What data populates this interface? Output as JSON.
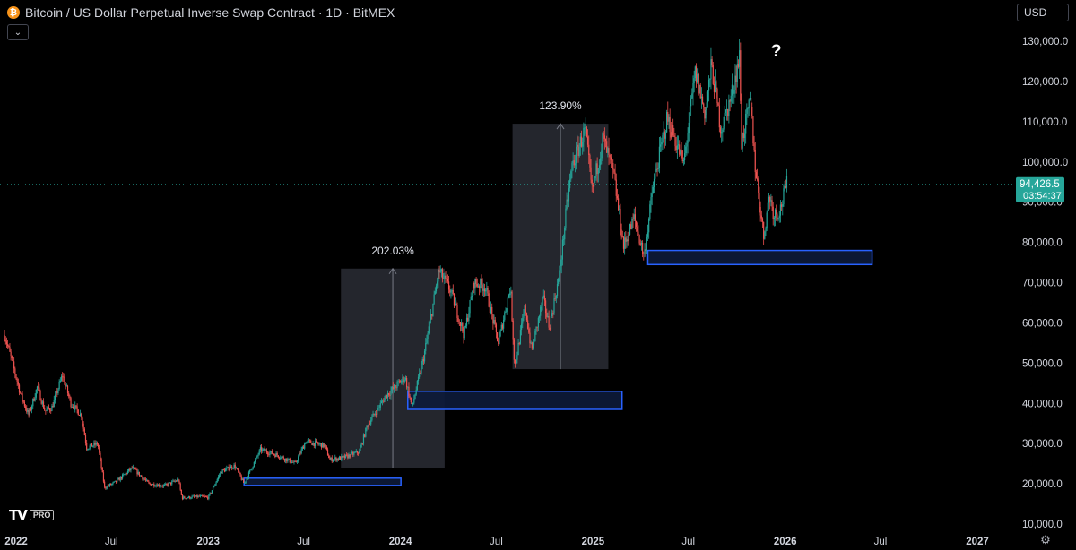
{
  "header": {
    "symbol_icon": "bitcoin-icon",
    "title": "Bitcoin / US Dollar Perpetual Inverse Swap Contract · 1D · BitMEX"
  },
  "currency_button": "USD",
  "collapse_icon": "chevron-down-icon",
  "logo": {
    "mark": "TV",
    "badge": "PRO"
  },
  "settings_icon": "gear-icon",
  "colors": {
    "background": "#000000",
    "up": "#26a69a",
    "down": "#ef5350",
    "zone_border": "#2962ff",
    "zone_fill": "#0d1b3a",
    "measure_fill": "#2a2d35",
    "price_label": "#26a69a"
  },
  "chart_data": {
    "type": "candlestick",
    "title": "Bitcoin / US Dollar Perpetual Inverse Swap Contract · 1D · BitMEX",
    "x_ticks": [
      "2022",
      "Jul",
      "2023",
      "Jul",
      "2024",
      "Jul",
      "2025",
      "Jul",
      "2026",
      "Jul",
      "2027"
    ],
    "x_tick_dates": [
      "2022-01-01",
      "2022-07-01",
      "2023-01-01",
      "2023-07-01",
      "2024-01-01",
      "2024-07-01",
      "2025-01-01",
      "2025-07-01",
      "2026-01-01",
      "2026-07-01",
      "2027-01-01"
    ],
    "y_ticks": [
      "130,000.0",
      "120,000.0",
      "110,000.0",
      "100,000.0",
      "90,000.0",
      "80,000.0",
      "70,000.0",
      "60,000.0",
      "50,000.0",
      "40,000.0",
      "30,000.0",
      "20,000.0",
      "10,000.0"
    ],
    "y_tick_values": [
      130000,
      120000,
      110000,
      100000,
      90000,
      80000,
      70000,
      60000,
      50000,
      40000,
      30000,
      20000,
      10000
    ],
    "ylim": [
      10000,
      130000
    ],
    "xlim": [
      "2022-01-01",
      "2027-01-01"
    ],
    "price_path": [
      [
        "2021-12-10",
        57000
      ],
      [
        "2021-12-25",
        50000
      ],
      [
        "2022-01-10",
        42000
      ],
      [
        "2022-01-25",
        37000
      ],
      [
        "2022-02-10",
        44000
      ],
      [
        "2022-02-25",
        38000
      ],
      [
        "2022-03-10",
        39000
      ],
      [
        "2022-03-30",
        47000
      ],
      [
        "2022-04-15",
        40000
      ],
      [
        "2022-05-05",
        37000
      ],
      [
        "2022-05-15",
        29000
      ],
      [
        "2022-06-05",
        30000
      ],
      [
        "2022-06-18",
        19000
      ],
      [
        "2022-07-10",
        20500
      ],
      [
        "2022-08-10",
        24000
      ],
      [
        "2022-09-10",
        20000
      ],
      [
        "2022-10-10",
        19500
      ],
      [
        "2022-11-05",
        21000
      ],
      [
        "2022-11-12",
        16500
      ],
      [
        "2022-12-15",
        16800
      ],
      [
        "2023-01-01",
        16600
      ],
      [
        "2023-01-25",
        23000
      ],
      [
        "2023-02-20",
        24500
      ],
      [
        "2023-03-10",
        20000
      ],
      [
        "2023-04-10",
        28500
      ],
      [
        "2023-05-15",
        27000
      ],
      [
        "2023-06-15",
        25000
      ],
      [
        "2023-07-05",
        30500
      ],
      [
        "2023-08-10",
        29500
      ],
      [
        "2023-08-20",
        26000
      ],
      [
        "2023-09-15",
        26500
      ],
      [
        "2023-10-15",
        28000
      ],
      [
        "2023-10-30",
        34500
      ],
      [
        "2023-12-05",
        42000
      ],
      [
        "2024-01-10",
        46500
      ],
      [
        "2024-01-23",
        39000
      ],
      [
        "2024-02-15",
        52000
      ],
      [
        "2024-03-05",
        66000
      ],
      [
        "2024-03-14",
        73000
      ],
      [
        "2024-04-05",
        68000
      ],
      [
        "2024-05-01",
        57000
      ],
      [
        "2024-05-20",
        70000
      ],
      [
        "2024-06-10",
        69000
      ],
      [
        "2024-07-05",
        55000
      ],
      [
        "2024-07-28",
        69000
      ],
      [
        "2024-08-05",
        49000
      ],
      [
        "2024-08-25",
        64000
      ],
      [
        "2024-09-06",
        53000
      ],
      [
        "2024-09-28",
        66000
      ],
      [
        "2024-10-10",
        59000
      ],
      [
        "2024-10-29",
        72000
      ],
      [
        "2024-11-12",
        89000
      ],
      [
        "2024-11-22",
        99000
      ],
      [
        "2024-12-17",
        108000
      ],
      [
        "2024-12-30",
        92500
      ],
      [
        "2025-01-20",
        106000
      ],
      [
        "2025-02-10",
        96000
      ],
      [
        "2025-02-28",
        79000
      ],
      [
        "2025-03-20",
        86000
      ],
      [
        "2025-04-08",
        76500
      ],
      [
        "2025-04-25",
        94000
      ],
      [
        "2025-05-22",
        111000
      ],
      [
        "2025-06-22",
        99500
      ],
      [
        "2025-07-14",
        122000
      ],
      [
        "2025-08-02",
        112000
      ],
      [
        "2025-08-14",
        124000
      ],
      [
        "2025-09-01",
        108000
      ],
      [
        "2025-09-20",
        116000
      ],
      [
        "2025-10-06",
        126000
      ],
      [
        "2025-10-10",
        105000
      ],
      [
        "2025-10-27",
        115000
      ],
      [
        "2025-11-05",
        99000
      ],
      [
        "2025-11-21",
        81500
      ],
      [
        "2025-12-02",
        92000
      ],
      [
        "2025-12-10",
        87000
      ],
      [
        "2025-12-22",
        88000
      ],
      [
        "2026-01-04",
        94426.5
      ]
    ],
    "last_price": "94,426.5",
    "countdown": "03:54:37",
    "measurements": [
      {
        "label": "202.03%",
        "x_start": "2023-09-10",
        "x_end": "2024-03-25",
        "y_low": 24000,
        "y_high": 73500
      },
      {
        "label": "123.90%",
        "x_start": "2024-08-01",
        "x_end": "2025-01-30",
        "y_low": 48500,
        "y_high": 109500
      }
    ],
    "zones": [
      {
        "x_start": "2023-03-10",
        "x_end": "2024-01-02",
        "y_low": 19600,
        "y_high": 21400
      },
      {
        "x_start": "2024-01-15",
        "x_end": "2025-02-25",
        "y_low": 38500,
        "y_high": 43000
      },
      {
        "x_start": "2025-04-15",
        "x_end": "2026-06-15",
        "y_low": 74500,
        "y_high": 78000
      }
    ],
    "annotation": {
      "text": "?",
      "x": "2025-12-15",
      "y": 128000
    },
    "grid": false
  }
}
